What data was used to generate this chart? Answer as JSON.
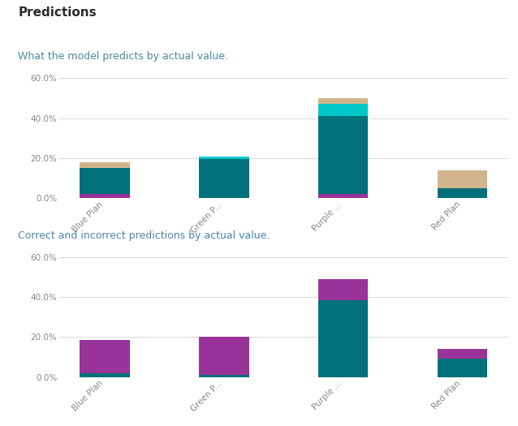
{
  "title": "Predictions",
  "chart1_subtitle": "What the model predicts by actual value.",
  "chart2_subtitle": "Correct and incorrect predictions by actual value.",
  "categories": [
    "Blue Plan",
    "Green P...",
    "Purple ...",
    "Red Plan"
  ],
  "chart1": {
    "purple": [
      0.02,
      0.0,
      0.02,
      0.0
    ],
    "teal": [
      0.13,
      0.195,
      0.39,
      0.05
    ],
    "cyan": [
      0.0,
      0.012,
      0.06,
      0.0
    ],
    "tan": [
      0.03,
      0.0,
      0.03,
      0.09
    ],
    "colors": {
      "purple": "#993399",
      "teal": "#00707A",
      "cyan": "#00C8C8",
      "tan": "#D2B48C"
    }
  },
  "chart2": {
    "teal": [
      0.02,
      0.012,
      0.385,
      0.09
    ],
    "purple": [
      0.165,
      0.19,
      0.105,
      0.05
    ],
    "colors": {
      "teal": "#00707A",
      "purple": "#993399"
    }
  },
  "ylim": [
    0.0,
    0.64
  ],
  "yticks": [
    0.0,
    0.2,
    0.4,
    0.6
  ],
  "ytick_labels": [
    "0.0%",
    "20.0%",
    "40.0%",
    "60.0%"
  ],
  "bg_color": "#ffffff",
  "plot_bg": "#ffffff",
  "title_color": "#2b2b2b",
  "subtitle_color": "#4a86a8",
  "grid_color": "#d8d8d8",
  "tick_label_color": "#888888",
  "bar_width": 0.42,
  "title_fontsize": 11,
  "subtitle_fontsize": 9,
  "tick_fontsize": 7.5
}
